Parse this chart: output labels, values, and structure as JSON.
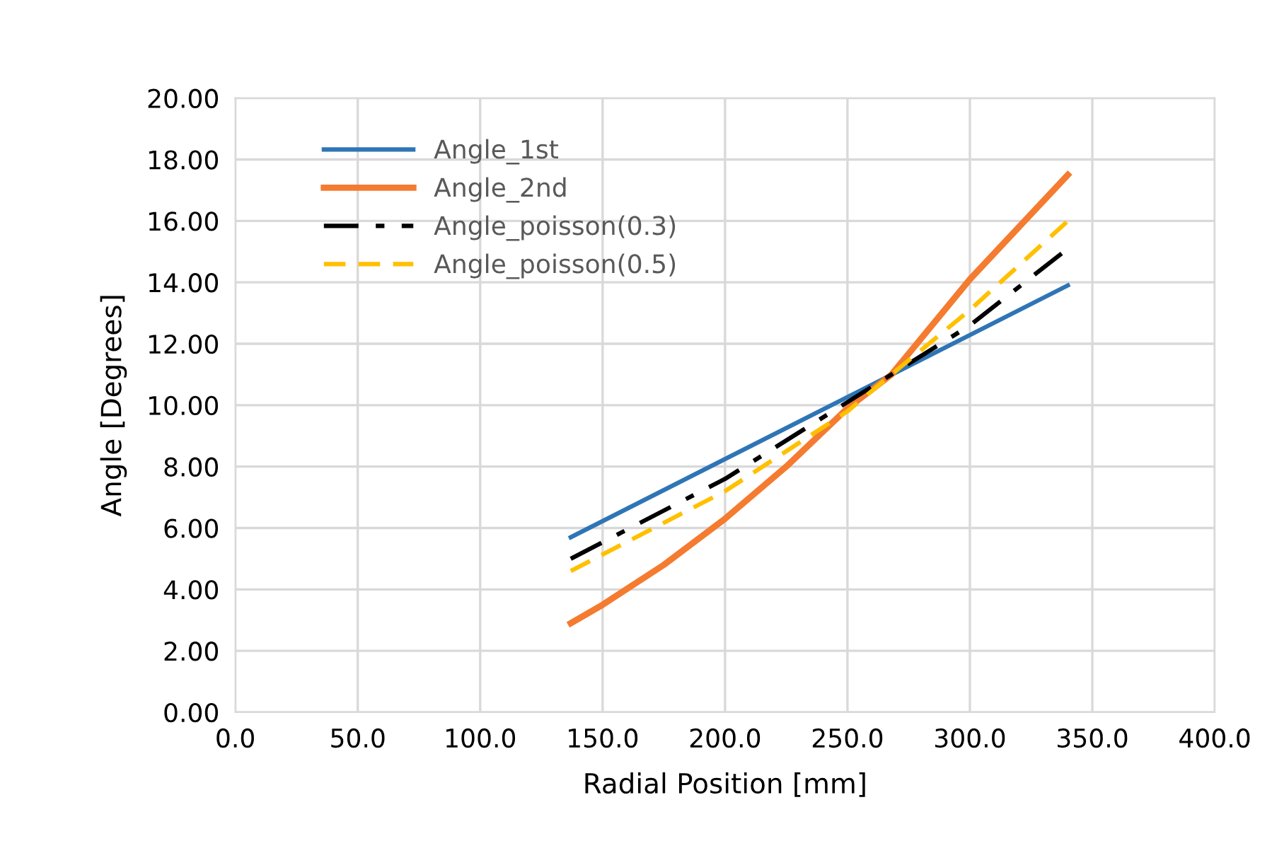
{
  "chart_data": {
    "type": "line",
    "xlabel": "Radial Position [mm]",
    "ylabel": "Angle [Degrees]",
    "xlim": [
      0,
      400
    ],
    "xticks": [
      {
        "value": 0,
        "label": "0.0"
      },
      {
        "value": 50,
        "label": "50.0"
      },
      {
        "value": 100,
        "label": "100.0"
      },
      {
        "value": 150,
        "label": "150.0"
      },
      {
        "value": 200,
        "label": "200.0"
      },
      {
        "value": 250,
        "label": "250.0"
      },
      {
        "value": 300,
        "label": "300.0"
      },
      {
        "value": 350,
        "label": "350.0"
      },
      {
        "value": 400,
        "label": "400.0"
      }
    ],
    "ylim": [
      0,
      20
    ],
    "yticks": [
      {
        "value": 0,
        "label": "0.00"
      },
      {
        "value": 2,
        "label": "2.00"
      },
      {
        "value": 4,
        "label": "4.00"
      },
      {
        "value": 6,
        "label": "6.00"
      },
      {
        "value": 8,
        "label": "8.00"
      },
      {
        "value": 10,
        "label": "10.00"
      },
      {
        "value": 12,
        "label": "12.00"
      },
      {
        "value": 14,
        "label": "14.00"
      },
      {
        "value": 16,
        "label": "16.00"
      },
      {
        "value": 18,
        "label": "18.00"
      },
      {
        "value": 20,
        "label": "20.00"
      }
    ],
    "grid": true,
    "legend": "top left",
    "series": [
      {
        "name": "Angle_1st",
        "color": "#2e75b6",
        "line_style": "solid",
        "x": [
          137,
          340
        ],
        "values": [
          5.7,
          13.9
        ]
      },
      {
        "name": "Angle_2nd",
        "color": "#f47b30",
        "line_style": "solid",
        "x": [
          137,
          150,
          175,
          200,
          225,
          250,
          268,
          300,
          340
        ],
        "values": [
          2.9,
          3.5,
          4.8,
          6.3,
          8.0,
          9.9,
          11.0,
          14.1,
          17.5
        ]
      },
      {
        "name": "Angle_poisson(0.3)",
        "color": "#000000",
        "line_style": "dashdot",
        "x": [
          137,
          200,
          250,
          268,
          300,
          340
        ],
        "values": [
          5.0,
          7.6,
          10.1,
          11.0,
          12.6,
          15.1
        ]
      },
      {
        "name": "Angle_poisson(0.5)",
        "color": "#ffc000",
        "line_style": "dashed",
        "x": [
          137,
          200,
          250,
          268,
          300,
          340
        ],
        "values": [
          4.6,
          7.2,
          9.8,
          11.0,
          13.1,
          16.0
        ]
      }
    ]
  }
}
